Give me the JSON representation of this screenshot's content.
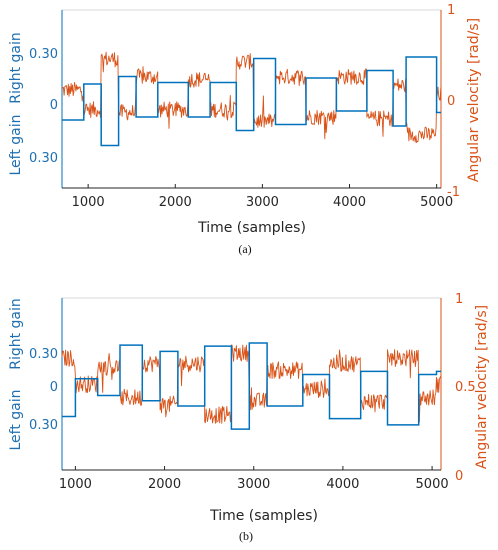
{
  "colors": {
    "gain": "#0072bd",
    "velocity": "#d95319",
    "axes": "#262626",
    "gain_text": "#1f6fb0"
  },
  "chart_data": [
    {
      "type": "line",
      "panel_label": "(a)",
      "xlabel": "Time (samples)",
      "ylabel_left_top": "Right gain",
      "ylabel_left_bottom": "Left gain",
      "ylabel_right": "Angular velocity [rad/s]",
      "xlim": [
        700,
        5050
      ],
      "x_ticks": [
        "1000",
        "2000",
        "3000",
        "4000",
        "5000"
      ],
      "left_ticks": [
        "0.30",
        "0",
        "0.30"
      ],
      "right_ticks": [
        "1",
        "0",
        "-1"
      ],
      "right_ylim": [
        -1,
        1
      ],
      "gain_signed_range": [
        -0.6,
        0.6
      ],
      "series": [
        {
          "role": "gain",
          "steps": [
            [
              700,
              -0.12
            ],
            [
              950,
              0.12
            ],
            [
              1150,
              -0.29
            ],
            [
              1350,
              0.17
            ],
            [
              1550,
              -0.1
            ],
            [
              1800,
              0.13
            ],
            [
              2150,
              -0.1
            ],
            [
              2400,
              0.13
            ],
            [
              2700,
              -0.19
            ],
            [
              2900,
              0.29
            ],
            [
              3150,
              -0.15
            ],
            [
              3500,
              0.16
            ],
            [
              3850,
              -0.06
            ],
            [
              4200,
              0.21
            ],
            [
              4500,
              -0.16
            ],
            [
              4650,
              0.3
            ],
            [
              5000,
              -0.07
            ]
          ],
          "end": 5050
        },
        {
          "role": "velocity",
          "levels": [
            [
              700,
              0.1
            ],
            [
              950,
              -0.12
            ],
            [
              1150,
              0.45
            ],
            [
              1350,
              -0.15
            ],
            [
              1550,
              0.25
            ],
            [
              1800,
              -0.12
            ],
            [
              2150,
              0.22
            ],
            [
              2400,
              -0.12
            ],
            [
              2700,
              0.42
            ],
            [
              2900,
              -0.25
            ],
            [
              3150,
              0.25
            ],
            [
              3500,
              -0.2
            ],
            [
              3850,
              0.25
            ],
            [
              4200,
              -0.22
            ],
            [
              4500,
              0.15
            ],
            [
              4650,
              -0.4
            ],
            [
              5000,
              0.05
            ]
          ],
          "noise": 0.09
        }
      ]
    },
    {
      "type": "line",
      "panel_label": "(b)",
      "xlabel": "Time (samples)",
      "ylabel_left_top": "Right gain",
      "ylabel_left_bottom": "Left gain",
      "ylabel_right": "Angular velocity [rad/s]",
      "xlim": [
        850,
        5100
      ],
      "x_ticks": [
        "1000",
        "2000",
        "3000",
        "4000",
        "5000"
      ],
      "left_ticks": [
        "0.30",
        "0",
        "0.30"
      ],
      "right_ticks": [
        "1",
        "0.5",
        "0"
      ],
      "right_ylim": [
        0,
        1
      ],
      "gain_signed_range": [
        -0.85,
        0.6
      ],
      "series": [
        {
          "role": "gain",
          "steps": [
            [
              850,
              -0.3
            ],
            [
              1000,
              0.06
            ],
            [
              1250,
              -0.1
            ],
            [
              1500,
              0.38
            ],
            [
              1750,
              -0.15
            ],
            [
              1950,
              0.32
            ],
            [
              2150,
              -0.2
            ],
            [
              2450,
              0.37
            ],
            [
              2750,
              -0.42
            ],
            [
              2950,
              0.4
            ],
            [
              3150,
              -0.2
            ],
            [
              3550,
              0.1
            ],
            [
              3850,
              -0.32
            ],
            [
              4200,
              0.13
            ],
            [
              4500,
              -0.38
            ],
            [
              4850,
              0.1
            ],
            [
              5050,
              0.13
            ]
          ],
          "end": 5100
        },
        {
          "role": "velocity",
          "levels": [
            [
              850,
              0.65
            ],
            [
              1000,
              0.5
            ],
            [
              1250,
              0.6
            ],
            [
              1500,
              0.42
            ],
            [
              1750,
              0.62
            ],
            [
              1950,
              0.38
            ],
            [
              2150,
              0.62
            ],
            [
              2450,
              0.32
            ],
            [
              2750,
              0.68
            ],
            [
              2950,
              0.4
            ],
            [
              3150,
              0.58
            ],
            [
              3550,
              0.47
            ],
            [
              3850,
              0.62
            ],
            [
              4200,
              0.4
            ],
            [
              4500,
              0.65
            ],
            [
              4850,
              0.42
            ],
            [
              5050,
              0.5
            ]
          ],
          "noise": 0.05
        }
      ]
    }
  ]
}
